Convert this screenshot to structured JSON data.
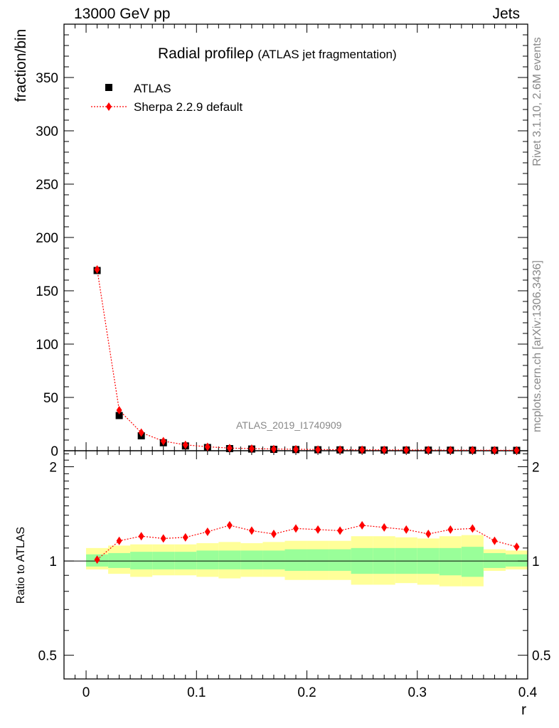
{
  "header": {
    "left": "13000 GeV pp",
    "right": "Jets"
  },
  "side_labels": {
    "rivet": "Rivet 3.1.10,  2.6M events",
    "mcplots": "mcplots.cern.ch [arXiv:1306.3436]"
  },
  "colors": {
    "mc": "#ff0000",
    "data": "#000000",
    "band_inner": "#99ff99",
    "band_outer": "#ffff99",
    "text_gray": "#888888"
  },
  "chart_data": [
    {
      "type": "scatter",
      "panel": "main",
      "title": "Radial profile",
      "title_symbol": "ρ",
      "title_suffix": "(ATLAS jet fragmentation)",
      "ylabel": "fraction/bin",
      "xlabel": "",
      "watermark": "ATLAS_2019_I1740909",
      "ylim": [
        0,
        400
      ],
      "xlim": [
        -0.02,
        0.4
      ],
      "yticks": [
        0,
        50,
        100,
        150,
        200,
        250,
        300,
        350
      ],
      "legend": [
        {
          "label": "ATLAS",
          "marker": "square"
        },
        {
          "label": "Sherpa 2.2.9 default",
          "marker": "diamond"
        }
      ],
      "legend_position": "top-left",
      "x": [
        0.01,
        0.03,
        0.05,
        0.07,
        0.09,
        0.11,
        0.13,
        0.15,
        0.17,
        0.19,
        0.21,
        0.23,
        0.25,
        0.27,
        0.29,
        0.31,
        0.33,
        0.35,
        0.37,
        0.39
      ],
      "series": [
        {
          "name": "ATLAS",
          "values": [
            169,
            33,
            14,
            7.5,
            4.5,
            3.0,
            2.0,
            1.6,
            1.3,
            1.1,
            0.9,
            0.8,
            0.7,
            0.65,
            0.6,
            0.55,
            0.5,
            0.45,
            0.4,
            0.35
          ]
        },
        {
          "name": "Sherpa 2.2.9 default",
          "values": [
            170,
            38,
            17,
            9,
            5.5,
            3.7,
            2.5,
            2.0,
            1.6,
            1.4,
            1.1,
            1.0,
            0.9,
            0.8,
            0.75,
            0.68,
            0.62,
            0.57,
            0.47,
            0.39
          ]
        }
      ]
    },
    {
      "type": "scatter",
      "panel": "ratio",
      "ylabel": "Ratio to ATLAS",
      "xlabel": "r",
      "ylim": [
        0.42,
        2.25
      ],
      "xlim": [
        -0.02,
        0.4
      ],
      "yticks": [
        0.5,
        1,
        2
      ],
      "xticks": [
        0,
        0.1,
        0.2,
        0.3,
        0.4
      ],
      "reference": 1,
      "x": [
        0.01,
        0.03,
        0.05,
        0.07,
        0.09,
        0.11,
        0.13,
        0.15,
        0.17,
        0.19,
        0.21,
        0.23,
        0.25,
        0.27,
        0.29,
        0.31,
        0.33,
        0.35,
        0.37,
        0.39
      ],
      "series": [
        {
          "name": "Sherpa 2.2.9 default",
          "values": [
            1.01,
            1.16,
            1.2,
            1.18,
            1.19,
            1.24,
            1.3,
            1.25,
            1.22,
            1.27,
            1.26,
            1.25,
            1.3,
            1.28,
            1.26,
            1.22,
            1.26,
            1.27,
            1.16,
            1.11
          ]
        }
      ],
      "bands": {
        "edges": [
          0.0,
          0.02,
          0.04,
          0.06,
          0.08,
          0.1,
          0.12,
          0.14,
          0.16,
          0.18,
          0.2,
          0.22,
          0.24,
          0.26,
          0.28,
          0.3,
          0.32,
          0.34,
          0.36,
          0.38,
          0.4
        ],
        "inner_lo": [
          0.96,
          0.95,
          0.94,
          0.94,
          0.94,
          0.94,
          0.94,
          0.94,
          0.94,
          0.93,
          0.93,
          0.93,
          0.91,
          0.91,
          0.91,
          0.91,
          0.9,
          0.89,
          0.95,
          0.96
        ],
        "inner_hi": [
          1.05,
          1.06,
          1.07,
          1.07,
          1.07,
          1.08,
          1.08,
          1.08,
          1.08,
          1.09,
          1.09,
          1.09,
          1.1,
          1.1,
          1.1,
          1.1,
          1.1,
          1.11,
          1.06,
          1.05
        ],
        "outer_lo": [
          0.94,
          0.91,
          0.89,
          0.9,
          0.9,
          0.89,
          0.88,
          0.89,
          0.89,
          0.87,
          0.87,
          0.87,
          0.84,
          0.84,
          0.85,
          0.84,
          0.83,
          0.83,
          0.93,
          0.94
        ],
        "outer_hi": [
          1.1,
          1.12,
          1.13,
          1.13,
          1.13,
          1.14,
          1.15,
          1.14,
          1.15,
          1.16,
          1.16,
          1.16,
          1.2,
          1.2,
          1.19,
          1.18,
          1.2,
          1.21,
          1.09,
          1.08
        ]
      }
    }
  ]
}
